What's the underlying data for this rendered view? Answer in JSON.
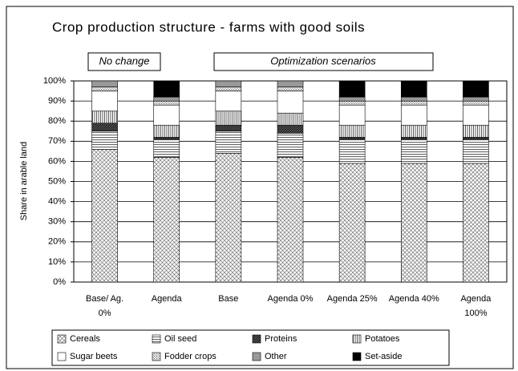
{
  "chart_data": {
    "type": "stacked_bar",
    "title": "Crop production structure - farms with good soils",
    "annotations": [
      "No change",
      "Optimization scenarios"
    ],
    "y_label": "Share in arable land",
    "categories": [
      "Base/ Ag.\n0%",
      "Agenda",
      "Base",
      "Agenda 0%",
      "Agenda 25%",
      "Agenda 40%",
      "Agenda\n100%"
    ],
    "series": [
      {
        "name": "Cereals",
        "color": "#888888",
        "pattern": "crosshatch",
        "values": [
          66,
          62,
          64,
          62,
          59,
          59,
          59
        ]
      },
      {
        "name": "Oil seed",
        "color": "#555555",
        "pattern": "hlines",
        "values": [
          9,
          9,
          11,
          12,
          12,
          12,
          12
        ]
      },
      {
        "name": "Proteins",
        "color": "#222222",
        "pattern": "darkdiag",
        "values": [
          4,
          1,
          3,
          4,
          1,
          1,
          1
        ]
      },
      {
        "name": "Potatoes",
        "color": "#444444",
        "pattern": "vlines",
        "values": [
          6,
          6,
          7,
          6,
          6,
          6,
          6
        ]
      },
      {
        "name": "Sugar beets",
        "color": "#ffffff",
        "pattern": "solid",
        "values": [
          10,
          10,
          10,
          11,
          10,
          10,
          10
        ]
      },
      {
        "name": "Fodder crops",
        "color": "#999999",
        "pattern": "dots",
        "values": [
          2,
          2,
          2,
          2,
          2,
          2,
          2
        ]
      },
      {
        "name": "Other",
        "color": "#999999",
        "pattern": "solid",
        "values": [
          3,
          2,
          3,
          3,
          2,
          2,
          2
        ]
      },
      {
        "name": "Set-aside",
        "color": "#000000",
        "pattern": "solid",
        "values": [
          0,
          8,
          0,
          0,
          8,
          8,
          8
        ]
      }
    ],
    "ylim": [
      0,
      100
    ],
    "yticks": [
      {
        "value": 0,
        "label": "0%"
      },
      {
        "value": 10,
        "label": "10%"
      },
      {
        "value": 20,
        "label": "20%"
      },
      {
        "value": 30,
        "label": "30%"
      },
      {
        "value": 40,
        "label": "40%"
      },
      {
        "value": 50,
        "label": "50%"
      },
      {
        "value": 60,
        "label": "60%"
      },
      {
        "value": 70,
        "label": "70%"
      },
      {
        "value": 80,
        "label": "80%"
      },
      {
        "value": 90,
        "label": "90%"
      },
      {
        "value": 100,
        "label": "100%"
      }
    ],
    "grid": true
  }
}
